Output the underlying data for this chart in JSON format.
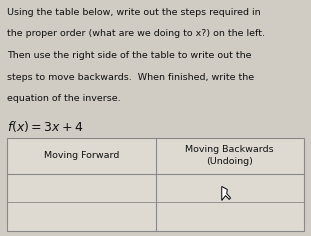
{
  "background_color": "#d0ccc4",
  "text_color": "#111111",
  "paragraph_lines": [
    "Using the table below, write out the steps required in",
    "the proper order (what are we doing to x?) on the left.",
    "Then use the right side of the table to write out the",
    "steps to move backwards.  When finished, write the",
    "equation of the inverse."
  ],
  "equation": "$f(x) = 3x + 4$",
  "col1_header": "Moving Forward",
  "col2_header": "Moving Backwards\n(Undoing)",
  "table_bg": "#dedad2",
  "table_border": "#888888",
  "n_data_rows": 2,
  "fontsize_para": 6.8,
  "fontsize_eq": 9.0,
  "fontsize_table": 6.8
}
